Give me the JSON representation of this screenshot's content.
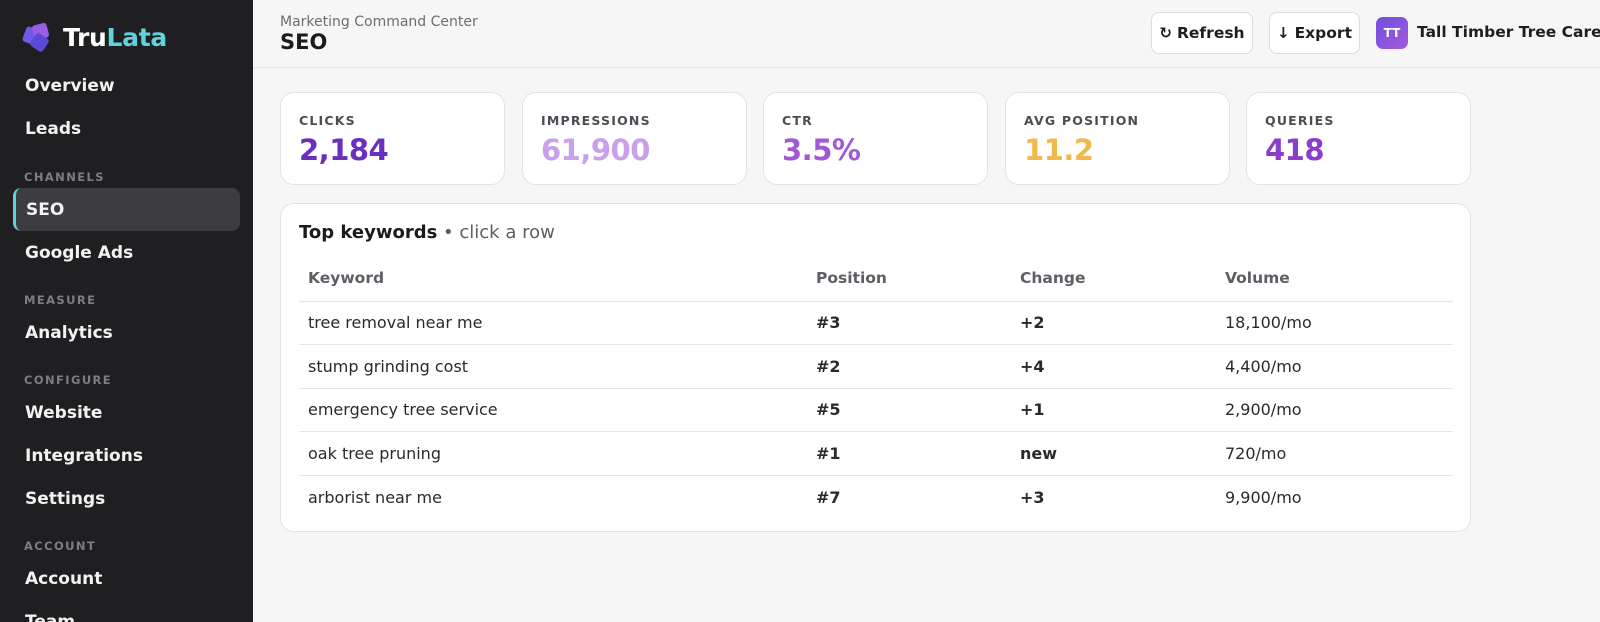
{
  "brand": {
    "name_part1": "Tru",
    "name_part2": "Lata",
    "logo_icon": "puzzle-logo-icon"
  },
  "sidebar": {
    "items": [
      {
        "label": "Overview"
      },
      {
        "label": "Leads"
      },
      {
        "label": "SEO",
        "active": true
      },
      {
        "label": "Google Ads"
      },
      {
        "label": "Analytics"
      },
      {
        "label": "Website"
      },
      {
        "label": "Integrations"
      },
      {
        "label": "Settings"
      },
      {
        "label": "Account"
      },
      {
        "label": "Team"
      }
    ],
    "sections": {
      "channels": "CHANNELS",
      "measure": "MEASURE",
      "configure": "CONFIGURE",
      "account": "ACCOUNT"
    }
  },
  "header": {
    "subtitle": "Marketing Command Center",
    "title": "SEO",
    "refresh_label": "Refresh",
    "refresh_icon": "↻",
    "export_label": "Export",
    "export_icon": "↓",
    "avatar_initials": "TT",
    "org_name": "Tall Timber Tree Care"
  },
  "stats": [
    {
      "label": "CLICKS",
      "value": "2,184",
      "color": "#6b2fc0"
    },
    {
      "label": "IMPRESSIONS",
      "value": "61,900",
      "color": "#c9a0ec"
    },
    {
      "label": "CTR",
      "value": "3.5%",
      "color": "#a259d9"
    },
    {
      "label": "AVG POSITION",
      "value": "11.2",
      "color": "#f2b84b"
    },
    {
      "label": "QUERIES",
      "value": "418",
      "color": "#8a3fcb"
    }
  ],
  "keywords": {
    "title": "Top keywords",
    "hint": " • click a row",
    "columns": [
      "Keyword",
      "Position",
      "Change",
      "Volume"
    ],
    "rows": [
      {
        "keyword": "tree removal near me",
        "position": "#3",
        "change": "+2",
        "volume": "18,100/mo"
      },
      {
        "keyword": "stump grinding cost",
        "position": "#2",
        "change": "+4",
        "volume": "4,400/mo"
      },
      {
        "keyword": "emergency tree service",
        "position": "#5",
        "change": "+1",
        "volume": "2,900/mo"
      },
      {
        "keyword": "oak tree pruning",
        "position": "#1",
        "change": "new",
        "volume": "720/mo"
      },
      {
        "keyword": "arborist near me",
        "position": "#7",
        "change": "+3",
        "volume": "9,900/mo"
      }
    ]
  },
  "colors": {
    "accent": "#5fd3dd",
    "sidebar_bg": "#1f1f22",
    "change_color": "#4ac8d8"
  }
}
